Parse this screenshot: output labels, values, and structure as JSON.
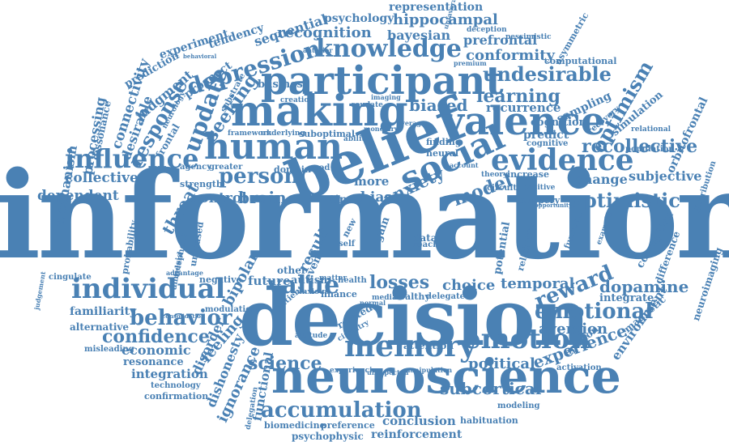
{
  "accent_color": "#4a81b4",
  "background_color": "#ffffff",
  "words": [
    {
      "text": "information"
    },
    {
      "text": "decision"
    },
    {
      "text": "belief"
    },
    {
      "text": "neuroscience"
    },
    {
      "text": "making"
    },
    {
      "text": "participant"
    },
    {
      "text": "human"
    },
    {
      "text": "valence"
    },
    {
      "text": "social"
    },
    {
      "text": "memory"
    },
    {
      "text": "evidence"
    },
    {
      "text": "individual"
    },
    {
      "text": "emotion"
    },
    {
      "text": "knowledge"
    },
    {
      "text": "influence"
    },
    {
      "text": "depression"
    },
    {
      "text": "update"
    },
    {
      "text": "value"
    },
    {
      "text": "person"
    },
    {
      "text": "behavior"
    },
    {
      "text": "emotional"
    },
    {
      "text": "reward"
    },
    {
      "text": "accumulation"
    },
    {
      "text": "optimistic"
    },
    {
      "text": "recollective"
    },
    {
      "text": "undesirable"
    },
    {
      "text": "learning"
    },
    {
      "text": "seeking"
    },
    {
      "text": "response"
    },
    {
      "text": "science"
    },
    {
      "text": "experience"
    },
    {
      "text": "dopamine"
    },
    {
      "text": "confidence"
    },
    {
      "text": "biased"
    },
    {
      "text": "optimism"
    },
    {
      "text": "anxiety"
    },
    {
      "text": "brain"
    },
    {
      "text": "conformity"
    },
    {
      "text": "recognition"
    },
    {
      "text": "hippocampal"
    },
    {
      "text": "bayesian"
    },
    {
      "text": "prefrontal"
    },
    {
      "text": "representation"
    },
    {
      "text": "psychology"
    },
    {
      "text": "sequential"
    },
    {
      "text": "tendency"
    },
    {
      "text": "experiment"
    },
    {
      "text": "prediction"
    },
    {
      "text": "judgment"
    },
    {
      "text": "prospect"
    },
    {
      "text": "connectivity"
    },
    {
      "text": "desirable"
    },
    {
      "text": "processing"
    },
    {
      "text": "dissonance"
    },
    {
      "text": "mechanism"
    },
    {
      "text": "collective"
    },
    {
      "text": "dependent"
    },
    {
      "text": "threat"
    },
    {
      "text": "control"
    },
    {
      "text": "model"
    },
    {
      "text": "bias"
    },
    {
      "text": "more"
    },
    {
      "text": "time"
    },
    {
      "text": "business"
    },
    {
      "text": "recurrence"
    },
    {
      "text": "sampling"
    },
    {
      "text": "cognition"
    },
    {
      "text": "predict"
    },
    {
      "text": "change"
    },
    {
      "text": "subjective"
    },
    {
      "text": "orbitofrontal"
    },
    {
      "text": "population"
    },
    {
      "text": "simulation"
    },
    {
      "text": "computational"
    },
    {
      "text": "asymmetric"
    },
    {
      "text": "pessimistic"
    },
    {
      "text": "deception"
    },
    {
      "text": "premium"
    },
    {
      "text": "frontal"
    },
    {
      "text": "neurology"
    },
    {
      "text": "substrate"
    },
    {
      "text": "anterior"
    },
    {
      "text": "increase"
    },
    {
      "text": "theory"
    },
    {
      "text": "positive"
    },
    {
      "text": "slippery"
    },
    {
      "text": "corruption"
    },
    {
      "text": "difference"
    },
    {
      "text": "neuroimaging"
    },
    {
      "text": "magnetic"
    },
    {
      "text": "environment"
    },
    {
      "text": "aversion"
    },
    {
      "text": "opinion"
    },
    {
      "text": "integrate"
    },
    {
      "text": "temporal"
    },
    {
      "text": "potential"
    },
    {
      "text": "reliability"
    },
    {
      "text": "choice"
    },
    {
      "text": "losses"
    },
    {
      "text": "political"
    },
    {
      "text": "activation"
    },
    {
      "text": "subcortical"
    },
    {
      "text": "conclusion"
    },
    {
      "text": "habituation"
    },
    {
      "text": "modeling"
    },
    {
      "text": "reinforcement"
    },
    {
      "text": "preference"
    },
    {
      "text": "biomedicine"
    },
    {
      "text": "psychophysic"
    },
    {
      "text": "functional"
    },
    {
      "text": "ignorance"
    },
    {
      "text": "dishonesty"
    },
    {
      "text": "disorder"
    },
    {
      "text": "feeling"
    },
    {
      "text": "integration"
    },
    {
      "text": "confirmation"
    },
    {
      "text": "technology"
    },
    {
      "text": "resonance"
    },
    {
      "text": "economic"
    },
    {
      "text": "misleading"
    },
    {
      "text": "alternative"
    },
    {
      "text": "familiarity"
    },
    {
      "text": "cingulate"
    },
    {
      "text": "judgement"
    },
    {
      "text": "negative"
    },
    {
      "text": "modulation"
    },
    {
      "text": "future"
    },
    {
      "text": "bipolar"
    },
    {
      "text": "autism"
    },
    {
      "text": "finance"
    },
    {
      "text": "health"
    },
    {
      "text": "attention"
    },
    {
      "text": "result"
    },
    {
      "text": "event"
    },
    {
      "text": "strength"
    },
    {
      "text": "agency"
    },
    {
      "text": "domain"
    },
    {
      "text": "good"
    },
    {
      "text": "greater"
    },
    {
      "text": "suboptimal"
    },
    {
      "text": "framework"
    },
    {
      "text": "underlying"
    },
    {
      "text": "creation"
    },
    {
      "text": "caudate"
    },
    {
      "text": "imaging"
    },
    {
      "text": "ability"
    },
    {
      "text": "finding"
    },
    {
      "text": "neural"
    },
    {
      "text": "cognitive"
    },
    {
      "text": "data"
    },
    {
      "text": "reach"
    },
    {
      "text": "other"
    },
    {
      "text": "self"
    },
    {
      "text": "gain"
    },
    {
      "text": "new"
    },
    {
      "text": "unbiased"
    },
    {
      "text": "telephone"
    },
    {
      "text": "amnesia"
    },
    {
      "text": "probability"
    },
    {
      "text": "matter"
    },
    {
      "text": "patient"
    },
    {
      "text": "anxious"
    },
    {
      "text": "circuitry"
    },
    {
      "text": "related"
    },
    {
      "text": "healthy"
    },
    {
      "text": "delegate"
    },
    {
      "text": "medial"
    },
    {
      "text": "normal"
    },
    {
      "text": "experiencing"
    },
    {
      "text": "unexpected"
    },
    {
      "text": "manipulation"
    },
    {
      "text": "delegation"
    },
    {
      "text": "advantage"
    },
    {
      "text": "consolidation"
    },
    {
      "text": "attitude"
    },
    {
      "text": "circuit"
    },
    {
      "text": "account"
    },
    {
      "text": "unfavorable"
    },
    {
      "text": "behavioral"
    },
    {
      "text": "average"
    },
    {
      "text": "monetary"
    },
    {
      "text": "relational"
    },
    {
      "text": "recovery"
    },
    {
      "text": "function"
    },
    {
      "text": "example"
    },
    {
      "text": "distribution"
    },
    {
      "text": "opportunity"
    }
  ]
}
